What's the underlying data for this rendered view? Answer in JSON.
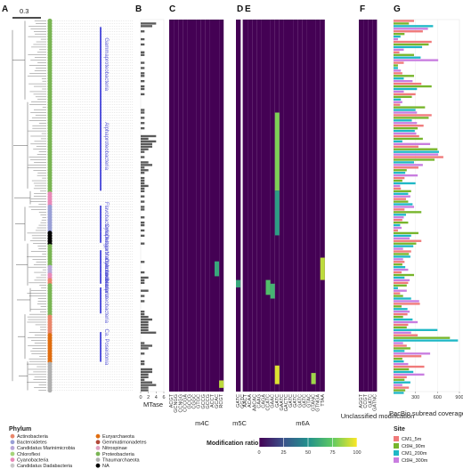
{
  "figure": {
    "panels": [
      "A",
      "B",
      "C",
      "D",
      "E",
      "F",
      "G"
    ],
    "scale_bar_label": "0.3",
    "clades": [
      {
        "label": "Gammaproteobacteria",
        "y0": 0.02,
        "y1": 0.22
      },
      {
        "label": "Alphaproteobacteria",
        "y0": 0.22,
        "y1": 0.46
      },
      {
        "label": "Flavobacteriia",
        "y0": 0.5,
        "y1": 0.57
      },
      {
        "label": "Cytophagia",
        "y0": 0.57,
        "y1": 0.6
      },
      {
        "label": "Deltaproteobacteria",
        "y0": 0.62,
        "y1": 0.66
      },
      {
        "label": "Marinimicrobia",
        "y0": 0.66,
        "y1": 0.68
      },
      {
        "label": "Cyanobacteria",
        "y0": 0.68,
        "y1": 0.695
      },
      {
        "label": "Actinobacteria",
        "y0": 0.695,
        "y1": 0.71
      },
      {
        "label": "Betaproteobacteria",
        "y0": 0.72,
        "y1": 0.79
      },
      {
        "label": "Ca. Poseidonia",
        "y0": 0.84,
        "y1": 0.92
      }
    ]
  },
  "phylum_legend": {
    "title": "Phylum",
    "items": [
      {
        "label": "Actinobacteria",
        "color": "#e9876b"
      },
      {
        "label": "Bacteroidetes",
        "color": "#9aa0d6"
      },
      {
        "label": "Candidatus Marinimicrobia",
        "color": "#b9a7d8"
      },
      {
        "label": "Chloroflexi",
        "color": "#a6d37a"
      },
      {
        "label": "Cyanobacteria",
        "color": "#e889b8"
      },
      {
        "label": "Candidatus Dadabacteria",
        "color": "#c8c8c8"
      },
      {
        "label": "Euryarchaeota",
        "color": "#e06d10"
      },
      {
        "label": "Gemmatimonadetes",
        "color": "#b24a3a"
      },
      {
        "label": "Nitrospinae",
        "color": "#e0a2c2"
      },
      {
        "label": "Proteobacteria",
        "color": "#7ab554"
      },
      {
        "label": "Thaumarchaeota",
        "color": "#b0b0b0"
      },
      {
        "label": "NA",
        "color": "#000000"
      }
    ]
  },
  "heatmap_legend": {
    "title": "Modification ratio (%)",
    "ticks": [
      "0",
      "25",
      "50",
      "75",
      "100"
    ]
  },
  "site_legend": {
    "title": "Site",
    "items": [
      {
        "label": "CM1_5m",
        "color": "#f07a7a"
      },
      {
        "label": "Ct9H_90m",
        "color": "#77b52b"
      },
      {
        "label": "CM1_200m",
        "color": "#1fb8c6"
      },
      {
        "label": "Ct9H_300m",
        "color": "#c97de0"
      }
    ]
  },
  "chart_data": [
    {
      "type": "bar",
      "panel": "B",
      "xlabel": "MTase",
      "x_ticks": [
        "0",
        "2",
        "4",
        "6"
      ],
      "xlim": [
        0,
        6
      ],
      "values": [
        0,
        4,
        3,
        0,
        1,
        0,
        0,
        1,
        0,
        1,
        0,
        0,
        1,
        1,
        0,
        0,
        1,
        0,
        1,
        0,
        1,
        1,
        0,
        1,
        0,
        1,
        1,
        0,
        1,
        0,
        0,
        0,
        0,
        0,
        1,
        1,
        0,
        1,
        0,
        1,
        0,
        1,
        0,
        0,
        4,
        2,
        4,
        3,
        3,
        2,
        1,
        0,
        1,
        0,
        2,
        3,
        1,
        2,
        1,
        0,
        1,
        1,
        1,
        2,
        1,
        1,
        0,
        1,
        0,
        1,
        0,
        1,
        1,
        0,
        0,
        1,
        0,
        1,
        1,
        0,
        1,
        0,
        1,
        0,
        0,
        1,
        0,
        0,
        0,
        0,
        0,
        0,
        1,
        0,
        0,
        0,
        1,
        0,
        2,
        1,
        1,
        0,
        0,
        2,
        0,
        1,
        0,
        1,
        0,
        0,
        0,
        1,
        1,
        2,
        3,
        2,
        2,
        2,
        2,
        4,
        0,
        0,
        0,
        1,
        3,
        2,
        0,
        1,
        0,
        0,
        1,
        1,
        0,
        3,
        3,
        2,
        2,
        1,
        3,
        4,
        2,
        2
      ]
    },
    {
      "type": "heatmap",
      "panels": [
        "C",
        "D",
        "E",
        "F"
      ],
      "value_range": [
        0,
        100
      ],
      "groups": [
        {
          "label": "m4C",
          "panel": "C",
          "motifs": [
            "ACGT",
            "GCNGG",
            "CCNGG",
            "CCCGA",
            "GCCG",
            "CGGC",
            "GTGC",
            "GCCG",
            "GCCG",
            "ACCT",
            "GCAC",
            "RCGT"
          ]
        },
        {
          "label": "m5C",
          "panel": "D",
          "motifs": [
            "GATC",
            "GGTC"
          ]
        },
        {
          "label": "m6A",
          "panel": "E",
          "motifs": [
            "AACT",
            "ACAA",
            "AACAC",
            "CAAG",
            "CAGA",
            "CCATC",
            "GAAC",
            "GATC",
            "GAATC",
            "GACTC",
            "GATC",
            "GATC",
            "GATC",
            "GATC",
            "GTAC",
            "GTANC",
            "GTNGA",
            "TTAA"
          ]
        },
        {
          "label": "Unclassified modification",
          "panel": "F",
          "motifs": [
            "AGGT",
            "CCGT",
            "GATC",
            "GATNC"
          ]
        }
      ],
      "cells": [
        {
          "motif": "GATC",
          "group": "m6A",
          "rows": [
            0.25,
            0.46
          ],
          "value": 80
        },
        {
          "motif": "GATC",
          "group": "m6A",
          "rows": [
            0.46,
            0.58
          ],
          "value": 55
        },
        {
          "motif": "GATC",
          "group": "m6A",
          "rows": [
            0.93,
            0.98
          ],
          "value": 95
        },
        {
          "motif": "GATC",
          "group": "m5C",
          "rows": [
            0.7,
            0.72
          ],
          "value": 60
        },
        {
          "motif": "GTANC",
          "group": "m6A",
          "rows": [
            0.95,
            0.98
          ],
          "value": 85
        },
        {
          "motif": "TTAA",
          "group": "m6A",
          "rows": [
            0.64,
            0.7
          ],
          "value": 90
        },
        {
          "motif": "CCATC",
          "group": "m6A",
          "rows": [
            0.7,
            0.74
          ],
          "value": 70
        },
        {
          "motif": "GAAC",
          "group": "m6A",
          "rows": [
            0.71,
            0.75
          ],
          "value": 65
        },
        {
          "motif": "GCAC",
          "group": "m4C",
          "rows": [
            0.65,
            0.69
          ],
          "value": 60
        },
        {
          "motif": "RCGT",
          "group": "m4C",
          "rows": [
            0.97,
            0.99
          ],
          "value": 90
        }
      ]
    },
    {
      "type": "bar",
      "panel": "G",
      "xlabel": "PacBio subread coverage",
      "x_ticks": [
        "300",
        "600",
        "900"
      ],
      "xlim": [
        0,
        900
      ],
      "series": [
        {
          "name": "CM1_5m",
          "color": "#f07a7a"
        },
        {
          "name": "Ct9H_90m",
          "color": "#77b52b"
        },
        {
          "name": "CM1_200m",
          "color": "#1fb8c6"
        },
        {
          "name": "Ct9H_300m",
          "color": "#c97de0"
        }
      ],
      "values": [
        280,
        210,
        540,
        470,
        400,
        150,
        95,
        60,
        520,
        480,
        390,
        140,
        80,
        280,
        370,
        610,
        140,
        60,
        60,
        100,
        120,
        280,
        140,
        260,
        380,
        520,
        320,
        140,
        300,
        250,
        100,
        120,
        90,
        430,
        300,
        320,
        520,
        480,
        250,
        320,
        410,
        330,
        290,
        310,
        350,
        400,
        120,
        500,
        340,
        600,
        620,
        610,
        680,
        560,
        280,
        400,
        340,
        180,
        160,
        330,
        150,
        120,
        300,
        90,
        100,
        240,
        200,
        230,
        170,
        200,
        260,
        280,
        150,
        380,
        170,
        140,
        120,
        200,
        90,
        110,
        60,
        340,
        240,
        220,
        380,
        310,
        270,
        130,
        240,
        210,
        230,
        130,
        150,
        120,
        160,
        200,
        110,
        280,
        150,
        220,
        200,
        180,
        60,
        180,
        90,
        130,
        240,
        350,
        360,
        110,
        190,
        220,
        190,
        130,
        260,
        330,
        200,
        180,
        600,
        240,
        330,
        770,
        880,
        130,
        180,
        230,
        150,
        500,
        380,
        120,
        140,
        200,
        420,
        210,
        270,
        420,
        180,
        150,
        230,
        120,
        210,
        160,
        140
      ]
    }
  ]
}
